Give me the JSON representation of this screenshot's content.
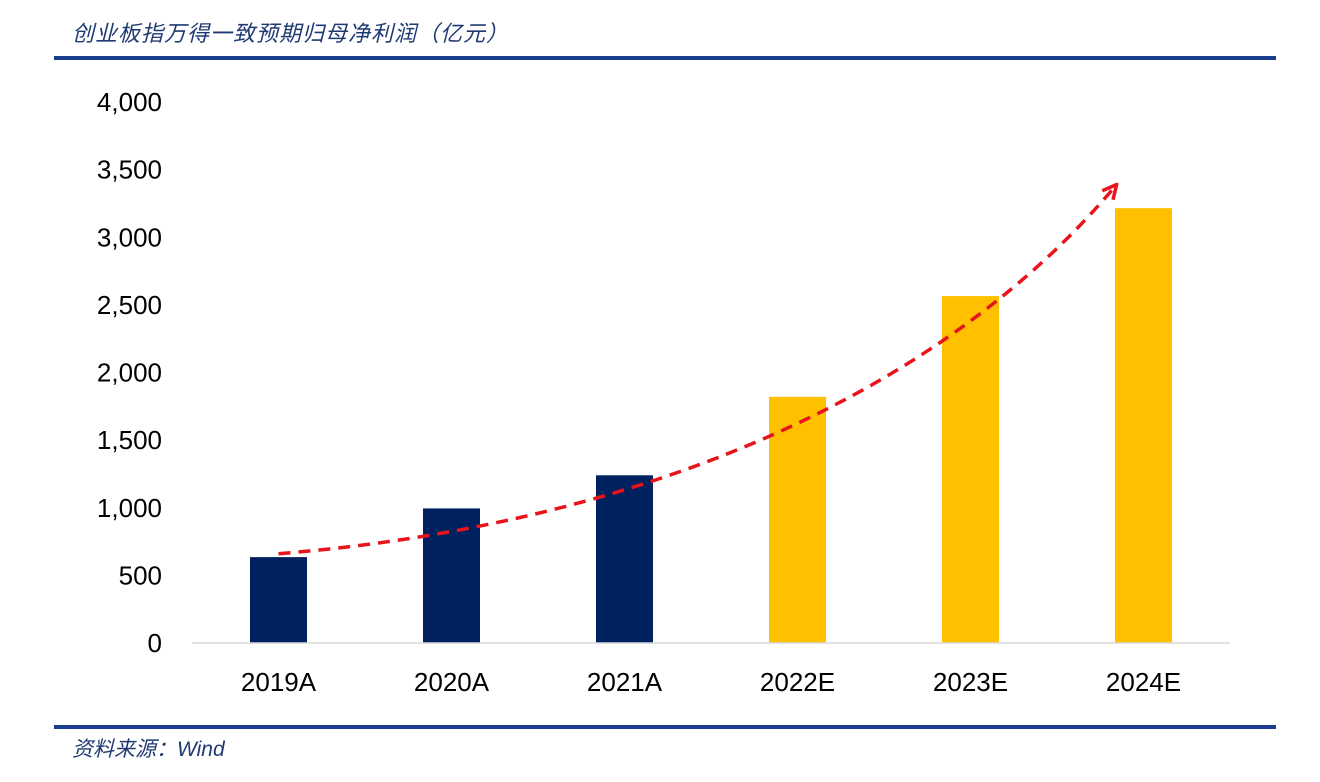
{
  "header": {
    "title": "创业板指万得一致预期归母净利润（亿元）"
  },
  "footer": {
    "source_label": "资料来源：",
    "source_value": "Wind"
  },
  "colors": {
    "actual": "#00215f",
    "estimate": "#ffc000",
    "trend_arrow": "#e8141b",
    "rule": "#1a3d8f",
    "title_text": "#1f3a73"
  },
  "chart_data": {
    "type": "bar",
    "title": "创业板指万得一致预期归母净利润（亿元）",
    "xlabel": "",
    "ylabel": "",
    "categories": [
      "2019A",
      "2020A",
      "2021A",
      "2022E",
      "2023E",
      "2024E"
    ],
    "values": [
      635,
      995,
      1240,
      1820,
      2565,
      3215
    ],
    "kinds": [
      "actual",
      "actual",
      "actual",
      "estimate",
      "estimate",
      "estimate"
    ],
    "ylim": [
      0,
      4000
    ],
    "yticks": [
      0,
      500,
      1000,
      1500,
      2000,
      2500,
      3000,
      3500,
      4000
    ],
    "ytick_labels": [
      "0",
      "500",
      "1,000",
      "1,500",
      "2,000",
      "2,500",
      "3,000",
      "3,500",
      "4,000"
    ],
    "grid": false,
    "legend": "none",
    "trend_arrow": {
      "style": "dashed",
      "from_value": 660,
      "to_value": 3380
    }
  }
}
